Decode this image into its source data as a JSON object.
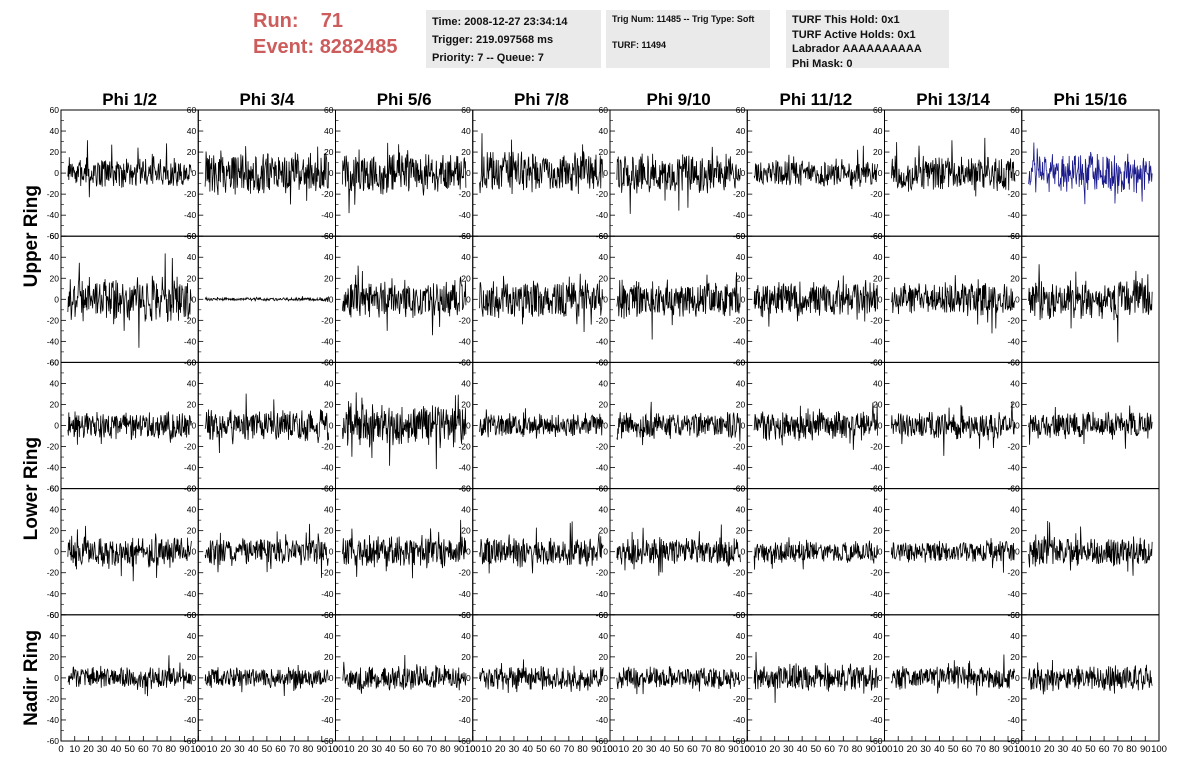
{
  "header": {
    "run_label": "Run:",
    "run_value": "71",
    "event_label": "Event:",
    "event_value": "8282485"
  },
  "time_box": {
    "time": "Time: 2008-12-27 23:34:14",
    "trigger": "Trigger: 219.097568 ms",
    "priority": "Priority: 7 -- Queue: 7"
  },
  "trig_box": {
    "trig_line": "Trig Num: 11485 -- Trig Type: Soft",
    "turf_line": "TURF: 11494"
  },
  "turf_box": {
    "hold": "TURF This Hold: 0x1",
    "active_holds": "TURF Active Holds: 0x1",
    "labrador": "Labrador AAAAAAAAAA",
    "phi_mask": "Phi Mask: 0"
  },
  "colors": {
    "run_text": "#cd5c5c",
    "box_background": "#eaeaea",
    "trace_default": "#000000",
    "trace_highlight": "#1a1a8c"
  },
  "chart_data": {
    "type": "line",
    "columns": [
      "Phi 1/2",
      "Phi 3/4",
      "Phi 5/6",
      "Phi 7/8",
      "Phi 9/10",
      "Phi 11/12",
      "Phi 13/14",
      "Phi 15/16"
    ],
    "row_labels": [
      {
        "name": "Upper Ring",
        "rows": [
          0,
          1
        ]
      },
      {
        "name": "Lower Ring",
        "rows": [
          2,
          3
        ]
      },
      {
        "name": "Nadir Ring",
        "rows": [
          4
        ]
      }
    ],
    "rows": 5,
    "xlim": [
      0,
      100
    ],
    "ylim": [
      -60,
      60
    ],
    "x_ticks": [
      0,
      10,
      20,
      30,
      40,
      50,
      60,
      70,
      80,
      90,
      100
    ],
    "y_ticks": [
      -60,
      -40,
      -20,
      0,
      20,
      40,
      60
    ],
    "samples_per_trace": 260,
    "sample_x_range": [
      5,
      95
    ],
    "grid": false,
    "traces": [
      {
        "row": 0,
        "col": 0,
        "amplitude": 12
      },
      {
        "row": 0,
        "col": 1,
        "amplitude": 17
      },
      {
        "row": 0,
        "col": 2,
        "amplitude": 17
      },
      {
        "row": 0,
        "col": 3,
        "amplitude": 17
      },
      {
        "row": 0,
        "col": 4,
        "amplitude": 16
      },
      {
        "row": 0,
        "col": 5,
        "amplitude": 10
      },
      {
        "row": 0,
        "col": 6,
        "amplitude": 14
      },
      {
        "row": 0,
        "col": 7,
        "amplitude": 16,
        "highlight": true
      },
      {
        "row": 1,
        "col": 0,
        "amplitude": 18
      },
      {
        "row": 1,
        "col": 1,
        "amplitude": 1.2
      },
      {
        "row": 1,
        "col": 2,
        "amplitude": 16
      },
      {
        "row": 1,
        "col": 3,
        "amplitude": 15
      },
      {
        "row": 1,
        "col": 4,
        "amplitude": 15
      },
      {
        "row": 1,
        "col": 5,
        "amplitude": 14
      },
      {
        "row": 1,
        "col": 6,
        "amplitude": 13
      },
      {
        "row": 1,
        "col": 7,
        "amplitude": 16
      },
      {
        "row": 2,
        "col": 0,
        "amplitude": 11
      },
      {
        "row": 2,
        "col": 1,
        "amplitude": 13
      },
      {
        "row": 2,
        "col": 2,
        "amplitude": 17
      },
      {
        "row": 2,
        "col": 3,
        "amplitude": 10
      },
      {
        "row": 2,
        "col": 4,
        "amplitude": 11
      },
      {
        "row": 2,
        "col": 5,
        "amplitude": 12
      },
      {
        "row": 2,
        "col": 6,
        "amplitude": 11
      },
      {
        "row": 2,
        "col": 7,
        "amplitude": 11
      },
      {
        "row": 3,
        "col": 0,
        "amplitude": 12
      },
      {
        "row": 3,
        "col": 1,
        "amplitude": 11
      },
      {
        "row": 3,
        "col": 2,
        "amplitude": 13
      },
      {
        "row": 3,
        "col": 3,
        "amplitude": 12
      },
      {
        "row": 3,
        "col": 4,
        "amplitude": 11
      },
      {
        "row": 3,
        "col": 5,
        "amplitude": 9
      },
      {
        "row": 3,
        "col": 6,
        "amplitude": 9
      },
      {
        "row": 3,
        "col": 7,
        "amplitude": 12
      },
      {
        "row": 4,
        "col": 0,
        "amplitude": 9
      },
      {
        "row": 4,
        "col": 1,
        "amplitude": 8
      },
      {
        "row": 4,
        "col": 2,
        "amplitude": 10
      },
      {
        "row": 4,
        "col": 3,
        "amplitude": 10
      },
      {
        "row": 4,
        "col": 4,
        "amplitude": 9
      },
      {
        "row": 4,
        "col": 5,
        "amplitude": 11
      },
      {
        "row": 4,
        "col": 6,
        "amplitude": 9
      },
      {
        "row": 4,
        "col": 7,
        "amplitude": 10
      }
    ]
  }
}
